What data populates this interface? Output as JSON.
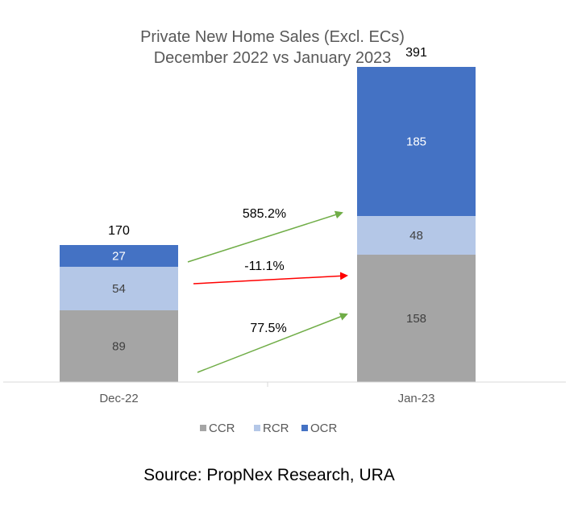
{
  "chart_data": {
    "type": "bar",
    "stacked": true,
    "title": [
      "Private New Home Sales (Excl. ECs)",
      "December 2022 vs January 2023"
    ],
    "categories": [
      "Dec-22",
      "Jan-23"
    ],
    "series": [
      {
        "name": "CCR",
        "values": [
          89,
          158
        ],
        "color": "#A5A5A5",
        "label_color": "#404040"
      },
      {
        "name": "RCR",
        "values": [
          54,
          48
        ],
        "color": "#B4C7E7",
        "label_color": "#404040"
      },
      {
        "name": "OCR",
        "values": [
          27,
          185
        ],
        "color": "#4472C4",
        "label_color": "#FFFFFF"
      }
    ],
    "totals": [
      "170",
      "391"
    ],
    "changes": [
      {
        "label": "585.2%",
        "series": "OCR",
        "color": "#70AD47"
      },
      {
        "label": "-11.1%",
        "series": "RCR",
        "color": "#FF0000"
      },
      {
        "label": "77.5%",
        "series": "CCR",
        "color": "#70AD47"
      }
    ],
    "ylim": [
      0,
      400
    ],
    "grid": false,
    "legend_position": "bottom"
  },
  "source": "Source: PropNex Research, URA"
}
